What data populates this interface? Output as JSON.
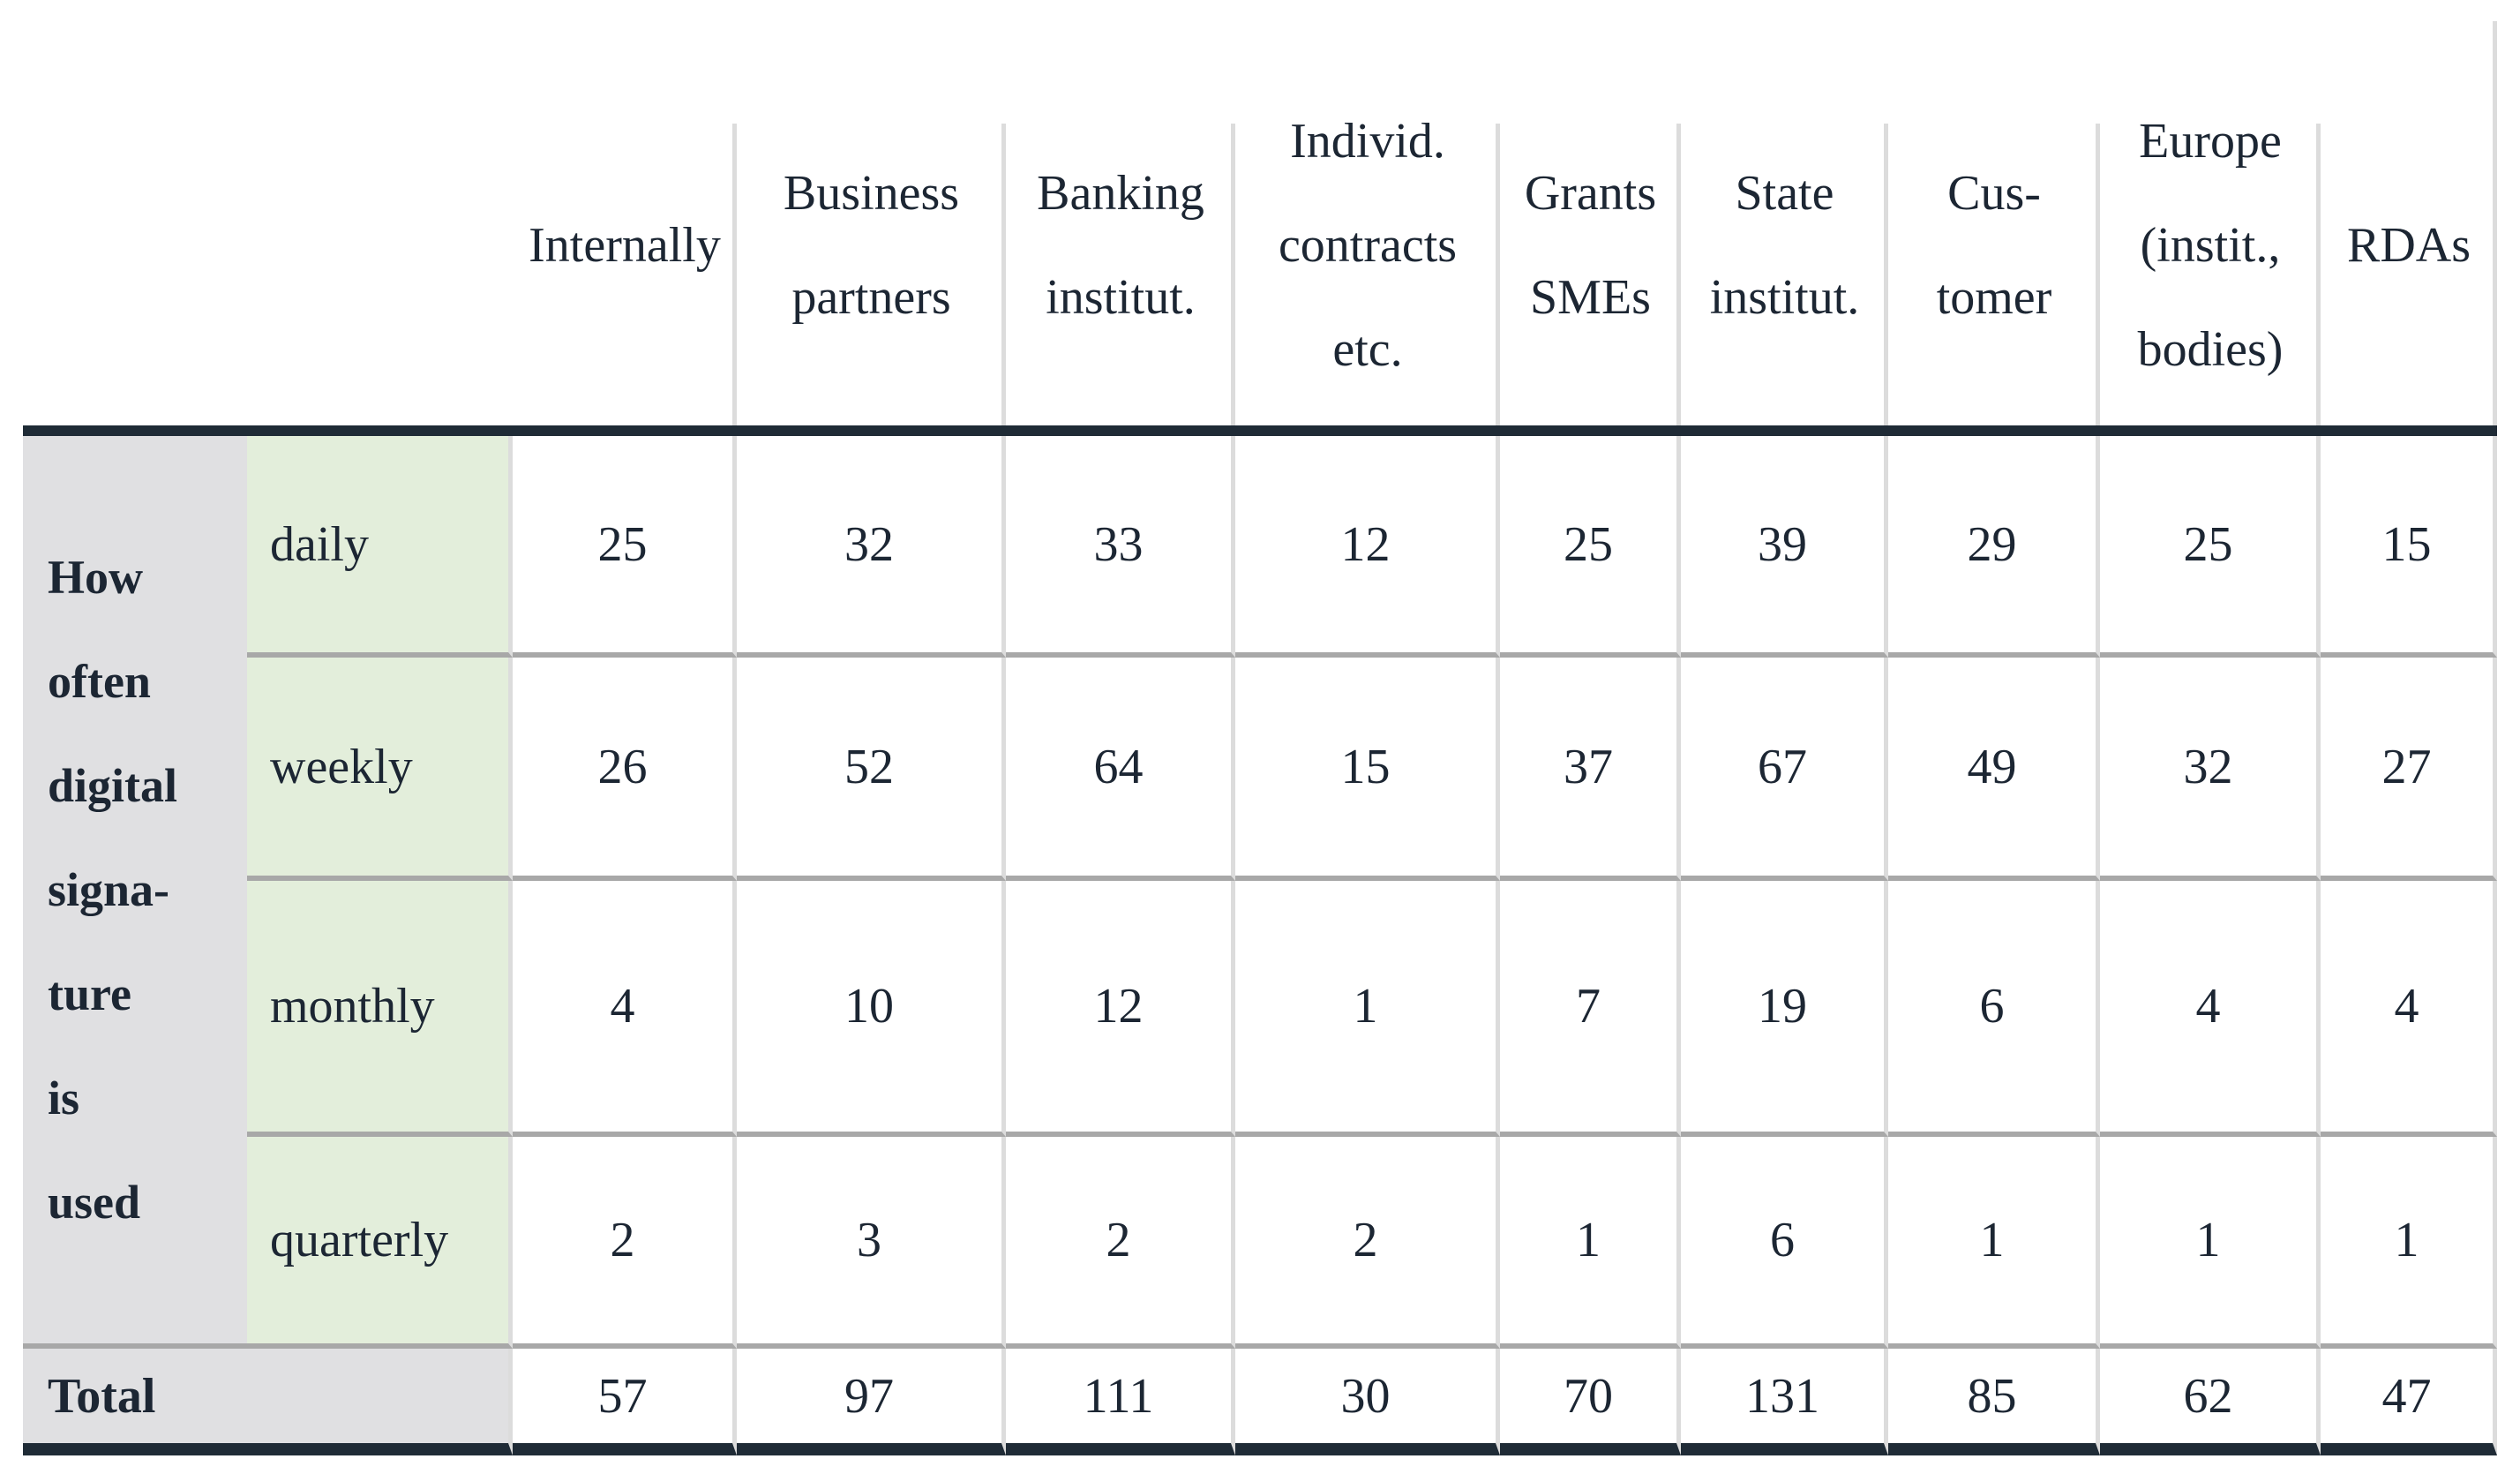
{
  "table": {
    "row_axis_label": "How\noften\ndigital\nsigna-\nture  is\nused",
    "columns": [
      "Internally",
      "Business\npartners",
      "Banking\ninstitut.",
      "Individ.\ncontracts\netc.",
      "Grants\nSMEs",
      "State\ninstitut.",
      "Cus-\ntomer",
      "Europe\n(instit.,\nbodies)",
      "RDAs"
    ],
    "rows": [
      {
        "label": "daily",
        "values": [
          25,
          32,
          33,
          12,
          25,
          39,
          29,
          25,
          15
        ]
      },
      {
        "label": "weekly",
        "values": [
          26,
          52,
          64,
          15,
          37,
          67,
          49,
          32,
          27
        ]
      },
      {
        "label": "monthly",
        "values": [
          4,
          10,
          12,
          1,
          7,
          19,
          6,
          4,
          4
        ]
      },
      {
        "label": "quarterly",
        "values": [
          2,
          3,
          2,
          2,
          1,
          6,
          1,
          1,
          1
        ]
      }
    ],
    "total": {
      "label": "Total",
      "values": [
        57,
        97,
        111,
        30,
        70,
        131,
        85,
        62,
        47
      ]
    }
  },
  "colors": {
    "thick_rule": "#1f2b36",
    "row_separator": "#a8a8a8",
    "column_separator": "#dcdcdc",
    "row_header_bg": "#e0e0e2",
    "sub_label_bg": "#e3eedb",
    "text": "#1c2633"
  }
}
